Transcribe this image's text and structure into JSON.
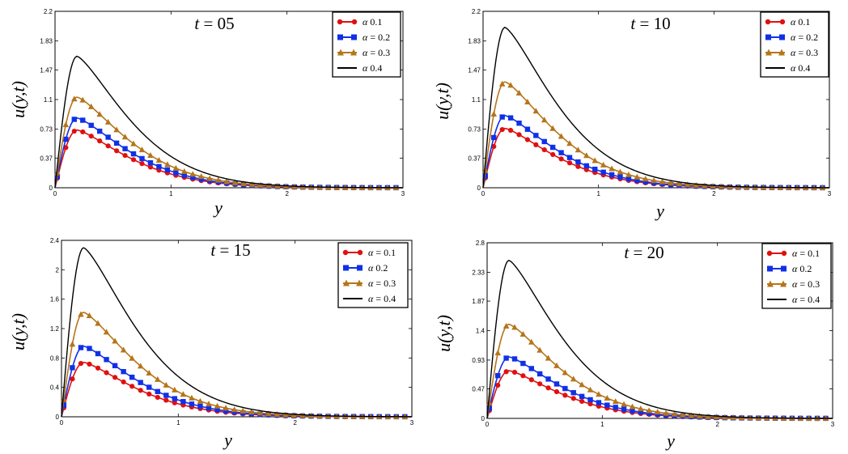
{
  "chart_data": [
    {
      "type": "line",
      "title_var": "t",
      "title_eq": " = 05",
      "xlabel": "y",
      "ylabel": "u(y,t)",
      "xlim": [
        0,
        3
      ],
      "ylim": [
        0,
        2.2
      ],
      "xticks": [
        0,
        1,
        2,
        3
      ],
      "xtick_labels": [
        "0",
        "1",
        "2",
        "3"
      ],
      "yticks": [
        0,
        0.37,
        0.73,
        1.1,
        1.47,
        1.83,
        2.2
      ],
      "ytick_labels": [
        "0",
        "0.37",
        "0.73",
        "1.1",
        "1.47",
        "1.83",
        "2.2"
      ],
      "legend_position": "top-right",
      "series": [
        {
          "name": "α = 0.1",
          "label_sym": "α",
          "label_rest": "   0.1",
          "marker": "circle",
          "color": "#e01010",
          "peak": 0.72
        },
        {
          "name": "α = 0.2",
          "label_sym": "α",
          "label_rest": " = 0.2",
          "marker": "square",
          "color": "#1030e8",
          "peak": 0.87
        },
        {
          "name": "α = 0.3",
          "label_sym": "α",
          "label_rest": " = 0.3",
          "marker": "triangle",
          "color": "#b5751a",
          "peak": 1.13
        },
        {
          "name": "α = 0.4",
          "label_sym": "α",
          "label_rest": "   0.4",
          "marker": "none",
          "color": "#000000",
          "peak": 1.64
        }
      ]
    },
    {
      "type": "line",
      "title_var": "t",
      "title_eq": " = 10",
      "xlabel": "y",
      "ylabel": "u(y,t)",
      "xlim": [
        0,
        3
      ],
      "ylim": [
        0,
        2.2
      ],
      "xticks": [
        0,
        1,
        2,
        3
      ],
      "xtick_labels": [
        "0",
        "1",
        "2",
        "3"
      ],
      "yticks": [
        0,
        0.37,
        0.73,
        1.1,
        1.47,
        1.83,
        2.2
      ],
      "ytick_labels": [
        "0",
        "0.37",
        "0.73",
        "1.1",
        "1.47",
        "1.83",
        "2.2"
      ],
      "legend_position": "top-right",
      "series": [
        {
          "name": "α = 0.1",
          "label_sym": "α",
          "label_rest": "   0.1",
          "marker": "circle",
          "color": "#e01010",
          "peak": 0.74
        },
        {
          "name": "α = 0.2",
          "label_sym": "α",
          "label_rest": " = 0.2",
          "marker": "square",
          "color": "#1030e8",
          "peak": 0.9
        },
        {
          "name": "α = 0.3",
          "label_sym": "α",
          "label_rest": " = 0.3",
          "marker": "triangle",
          "color": "#b5751a",
          "peak": 1.32
        },
        {
          "name": "α = 0.4",
          "label_sym": "α",
          "label_rest": "   0.4",
          "marker": "none",
          "color": "#000000",
          "peak": 2.0
        }
      ]
    },
    {
      "type": "line",
      "title_var": "t",
      "title_eq": " = 15",
      "xlabel": "y",
      "ylabel": "u(y,t)",
      "xlim": [
        0,
        3
      ],
      "ylim": [
        0,
        2.4
      ],
      "xticks": [
        0,
        1,
        2,
        3
      ],
      "xtick_labels": [
        "0",
        "1",
        "2",
        "3"
      ],
      "yticks": [
        0,
        0.4,
        0.8,
        1.2,
        1.6,
        2.0,
        2.4
      ],
      "ytick_labels": [
        "0",
        "0.4",
        "0.8",
        "1.2",
        "1.6",
        "2",
        "2.4"
      ],
      "legend_position": "top-right",
      "series": [
        {
          "name": "α = 0.1",
          "label_sym": "α",
          "label_rest": " = 0.1",
          "marker": "circle",
          "color": "#e01010",
          "peak": 0.74
        },
        {
          "name": "α = 0.2",
          "label_sym": "α",
          "label_rest": "   0.2",
          "marker": "square",
          "color": "#1030e8",
          "peak": 0.96
        },
        {
          "name": "α = 0.3",
          "label_sym": "α",
          "label_rest": " = 0.3",
          "marker": "triangle",
          "color": "#b5751a",
          "peak": 1.42
        },
        {
          "name": "α = 0.4",
          "label_sym": "α",
          "label_rest": " = 0.4",
          "marker": "none",
          "color": "#000000",
          "peak": 2.3
        }
      ]
    },
    {
      "type": "line",
      "title_var": "t",
      "title_eq": " = 20",
      "xlabel": "y",
      "ylabel": "u(y,t)",
      "xlim": [
        0,
        3
      ],
      "ylim": [
        0,
        2.8
      ],
      "xticks": [
        0,
        1,
        2,
        3
      ],
      "xtick_labels": [
        "0",
        "1",
        "2",
        "3"
      ],
      "yticks": [
        0,
        0.47,
        0.93,
        1.4,
        1.87,
        2.33,
        2.8
      ],
      "ytick_labels": [
        "0",
        "0.47",
        "0.93",
        "1.4",
        "1.87",
        "2.33",
        "2.8"
      ],
      "legend_position": "top-right",
      "series": [
        {
          "name": "α = 0.1",
          "label_sym": "α",
          "label_rest": " = 0.1",
          "marker": "circle",
          "color": "#e01010",
          "peak": 0.76
        },
        {
          "name": "α = 0.2",
          "label_sym": "α",
          "label_rest": "   0.2",
          "marker": "square",
          "color": "#1030e8",
          "peak": 0.98
        },
        {
          "name": "α = 0.3",
          "label_sym": "α",
          "label_rest": " = 0.3",
          "marker": "triangle",
          "color": "#b5751a",
          "peak": 1.5
        },
        {
          "name": "α = 0.4",
          "label_sym": "α",
          "label_rest": " = 0.4",
          "marker": "none",
          "color": "#000000",
          "peak": 2.52
        }
      ]
    }
  ]
}
